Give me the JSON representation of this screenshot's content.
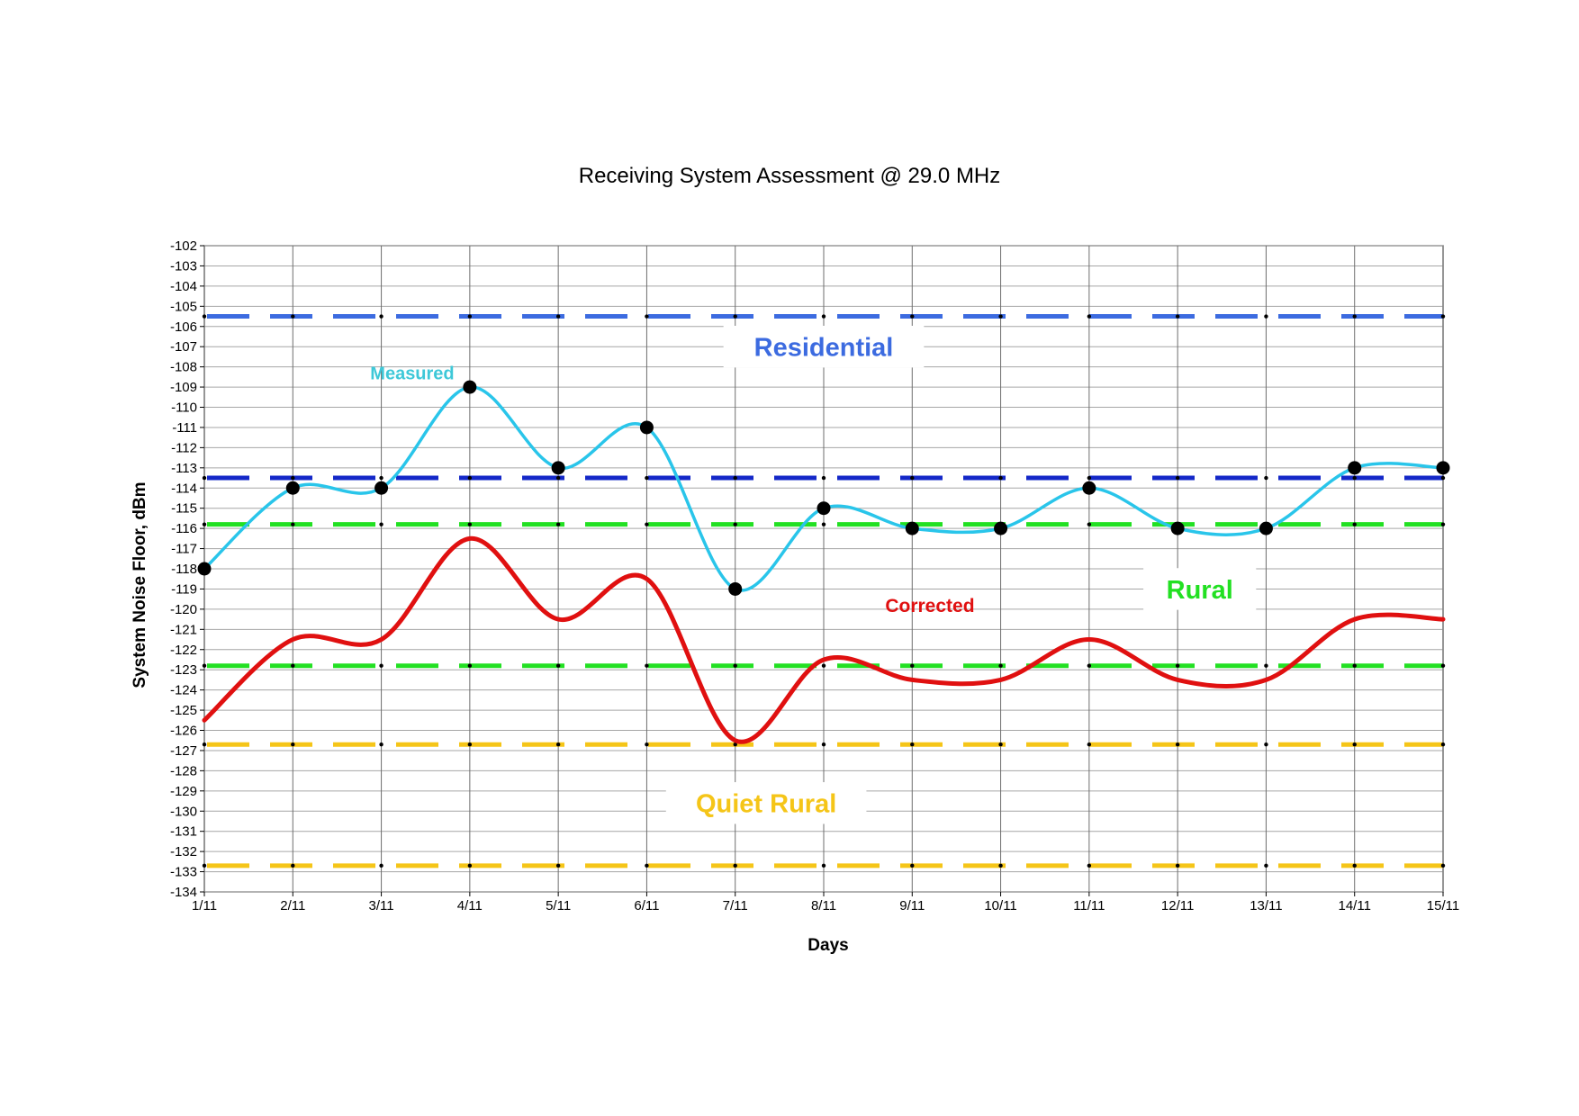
{
  "chart_data": {
    "type": "line",
    "title": "Receiving System Assessment @ 29.0  MHz",
    "xlabel": "Days",
    "ylabel": "System Noise Floor, dBm",
    "categories": [
      "1/11",
      "2/11",
      "3/11",
      "4/11",
      "5/11",
      "6/11",
      "7/11",
      "8/11",
      "9/11",
      "10/11",
      "11/11",
      "12/11",
      "13/11",
      "14/11",
      "15/11"
    ],
    "ylim": [
      -134,
      -102
    ],
    "ytick_step": 1,
    "grid": "on",
    "series": [
      {
        "name": "Measured",
        "color": "#29c5ea",
        "markers": "black-circle",
        "smooth": true,
        "values": [
          -118,
          -114,
          -114,
          -109,
          -113,
          -111,
          -119,
          -115,
          -116,
          -116,
          -114,
          -116,
          -116,
          -113,
          -113
        ]
      },
      {
        "name": "Corrected",
        "color": "#e01010",
        "markers": "none",
        "smooth": true,
        "values": [
          -125.5,
          -121.5,
          -121.5,
          -116.5,
          -120.5,
          -118.5,
          -126.5,
          -122.5,
          -123.5,
          -123.5,
          -121.5,
          -123.5,
          -123.5,
          -120.5,
          -120.5
        ]
      }
    ],
    "reference_lines": [
      {
        "group": "Residential",
        "value": -105.5,
        "color": "#3c6be0"
      },
      {
        "group": "Residential",
        "value": -113.5,
        "color": "#1428c8"
      },
      {
        "group": "Rural",
        "value": -115.8,
        "color": "#22e022"
      },
      {
        "group": "Rural",
        "value": -122.8,
        "color": "#22e022"
      },
      {
        "group": "Quiet Rural",
        "value": -126.7,
        "color": "#f5c518"
      },
      {
        "group": "Quiet Rural",
        "value": -132.7,
        "color": "#f5c518"
      }
    ],
    "annotations": [
      {
        "text": "Residential",
        "color": "#3c6be0",
        "x_cat": 7.0,
        "y": -107.0,
        "size": 29,
        "box": true
      },
      {
        "text": "Measured",
        "color": "#3ec8d8",
        "x_cat": 2.35,
        "y": -108.3,
        "size": 20,
        "box": false
      },
      {
        "text": "Corrected",
        "color": "#e01010",
        "x_cat": 8.2,
        "y": -119.8,
        "size": 21,
        "box": false
      },
      {
        "text": "Rural",
        "color": "#22e022",
        "x_cat": 11.25,
        "y": -119.0,
        "size": 29,
        "box": true
      },
      {
        "text": "Quiet Rural",
        "color": "#f5c518",
        "x_cat": 6.35,
        "y": -129.6,
        "size": 29,
        "box": true
      }
    ]
  }
}
